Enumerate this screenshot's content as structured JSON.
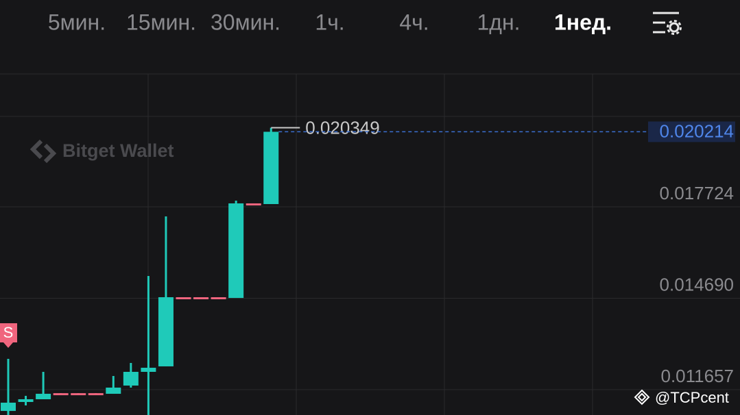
{
  "toolbar": {
    "tabs": [
      "5мин.",
      "15мин.",
      "30мин.",
      "1ч.",
      "4ч.",
      "1дн.",
      "1нед."
    ],
    "active": 6
  },
  "watermark": "Bitget Wallet",
  "credit": "@TCPcent",
  "chart_data": {
    "type": "candlestick",
    "up_color": "#1fcab9",
    "down_color": "#f0657e",
    "open": [
      0.01095,
      0.011247,
      0.011338,
      0.01154,
      0.01154,
      0.01154,
      0.011519,
      0.011792,
      0.012247,
      0.012429,
      0.014724,
      0.014724,
      0.014724,
      0.0147,
      0.017838,
      0.017815
    ],
    "high": [
      0.01268,
      0.011451,
      0.012247,
      0.01154,
      0.01154,
      0.01154,
      0.01211,
      0.012542,
      0.015428,
      0.017406,
      0.014724,
      0.014724,
      0.014724,
      0.017929,
      0.017838,
      0.020349
    ],
    "low": [
      0.0105,
      0.011133,
      0.011338,
      0.0115,
      0.0115,
      0.0115,
      0.011519,
      0.011724,
      0.0105,
      0.012429,
      0.01469,
      0.01469,
      0.01469,
      0.0147,
      0.017815,
      0.017815
    ],
    "close": [
      0.011224,
      0.011338,
      0.011519,
      0.011519,
      0.011519,
      0.011519,
      0.011724,
      0.012247,
      0.012383,
      0.014724,
      0.0147,
      0.0147,
      0.0147,
      0.017838,
      0.017815,
      0.020214
    ],
    "markers": [
      {
        "index": 0,
        "label": "S"
      }
    ],
    "ylim": [
      0.010815,
      0.022133
    ],
    "yticks": [
      0.011657,
      {
        "value": 0.01469,
        "label": "0.014690"
      },
      0.017724
    ]
  }
}
